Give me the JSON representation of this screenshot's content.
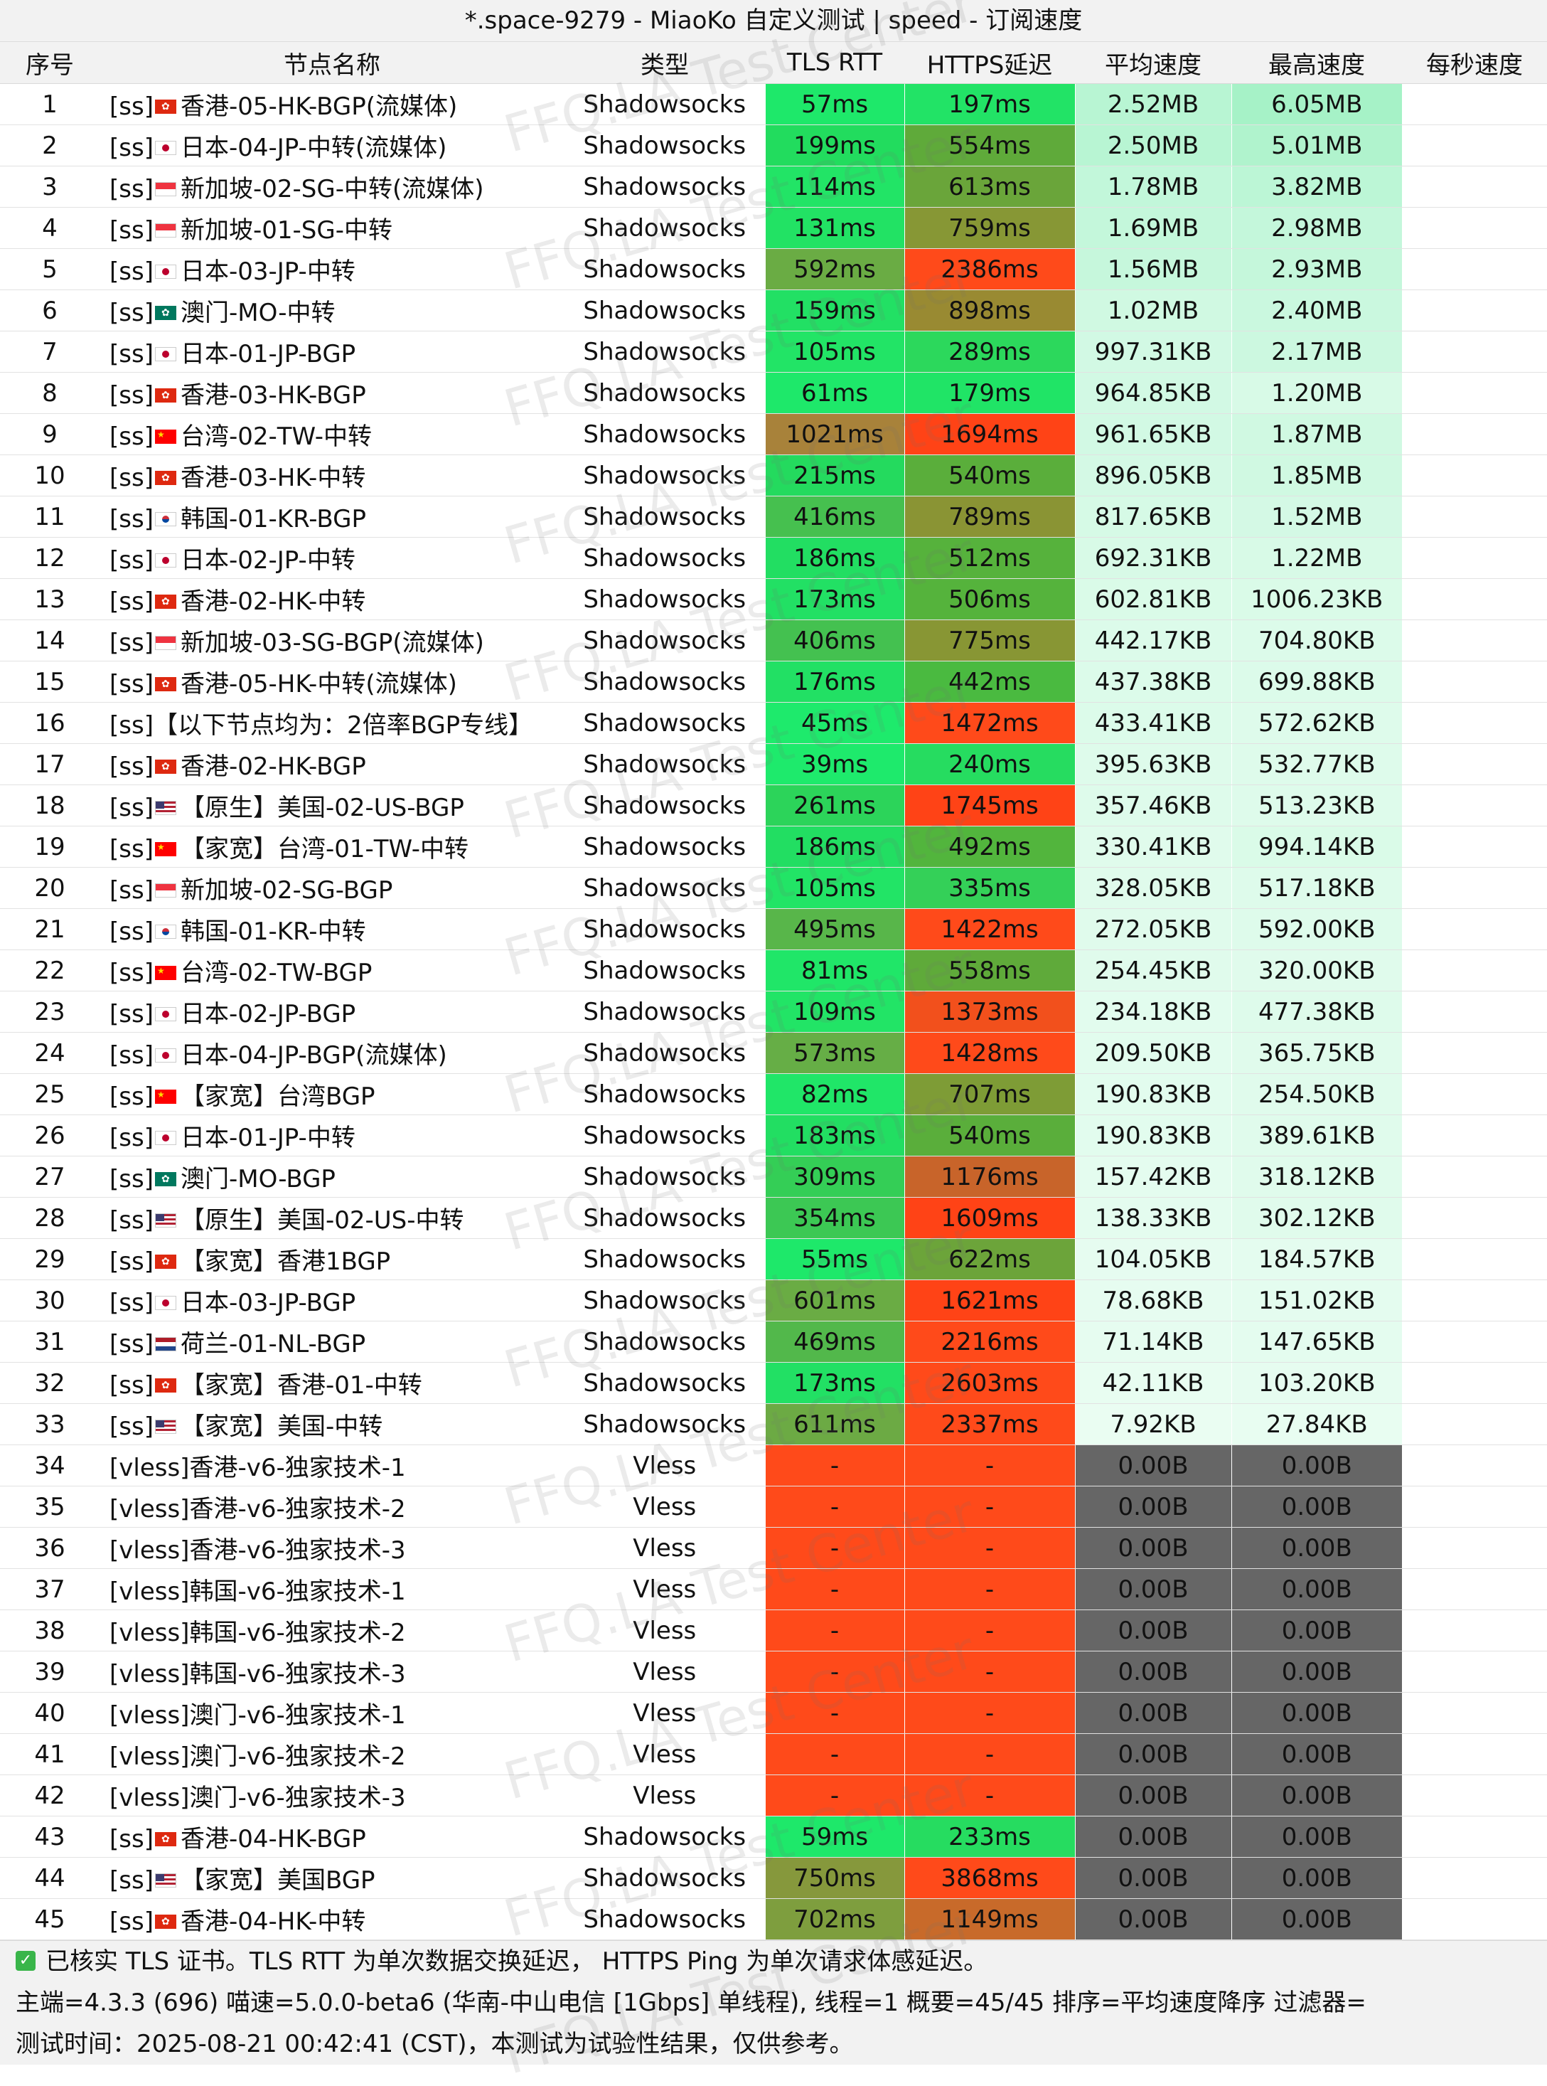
{
  "title": "*.space-9279 - MiaoKo 自定义测试 | speed - 订阅速度",
  "columns": [
    "序号",
    "节点名称",
    "类型",
    "TLS RTT",
    "HTTPS延迟",
    "平均速度",
    "最高速度",
    "每秒速度"
  ],
  "watermark_text": "FFQ.LA Test Center",
  "rows": [
    {
      "idx": "1",
      "prefix": "[ss]",
      "flag": "hk",
      "name": "香港-05-HK-BGP(流媒体)",
      "type": "Shadowsocks",
      "tls": "57ms",
      "https": "197ms",
      "avg": "2.52MB",
      "max": "6.05MB",
      "tls_color": "#1ee86a",
      "https_color": "#22e366",
      "avg_color": "#b8f5d3",
      "max_color": "#a6f2c7"
    },
    {
      "idx": "2",
      "prefix": "[ss]",
      "flag": "jp",
      "name": "日本-04-JP-中转(流媒体)",
      "type": "Shadowsocks",
      "tls": "199ms",
      "https": "554ms",
      "avg": "2.50MB",
      "max": "5.01MB",
      "tls_color": "#22dc5e",
      "https_color": "#5faa3a",
      "avg_color": "#b8f5d3",
      "max_color": "#b0f3cd"
    },
    {
      "idx": "3",
      "prefix": "[ss]",
      "flag": "sg",
      "name": "新加坡-02-SG-中转(流媒体)",
      "type": "Shadowsocks",
      "tls": "114ms",
      "https": "613ms",
      "avg": "1.78MB",
      "max": "3.82MB",
      "tls_color": "#22e466",
      "https_color": "#6aa53a",
      "avg_color": "#c2f7da",
      "max_color": "#bcf6d6"
    },
    {
      "idx": "4",
      "prefix": "[ss]",
      "flag": "sg",
      "name": "新加坡-01-SG-中转",
      "type": "Shadowsocks",
      "tls": "131ms",
      "https": "759ms",
      "avg": "1.69MB",
      "max": "2.98MB",
      "tls_color": "#22e264",
      "https_color": "#879735",
      "avg_color": "#c4f7db",
      "max_color": "#c4f7db"
    },
    {
      "idx": "5",
      "prefix": "[ss]",
      "flag": "jp",
      "name": "日本-03-JP-中转",
      "type": "Shadowsocks",
      "tls": "592ms",
      "https": "2386ms",
      "avg": "1.56MB",
      "max": "2.93MB",
      "tls_color": "#6aac44",
      "https_color": "#ff4a1a",
      "avg_color": "#c6f7dc",
      "max_color": "#c5f7db"
    },
    {
      "idx": "6",
      "prefix": "[ss]",
      "flag": "mo",
      "name": "澳门-MO-中转",
      "type": "Shadowsocks",
      "tls": "159ms",
      "https": "898ms",
      "avg": "1.02MB",
      "max": "2.40MB",
      "tls_color": "#22e064",
      "https_color": "#998a32",
      "avg_color": "#d0f9e2",
      "max_color": "#caf8df"
    },
    {
      "idx": "7",
      "prefix": "[ss]",
      "flag": "jp",
      "name": "日本-01-JP-BGP",
      "type": "Shadowsocks",
      "tls": "105ms",
      "https": "289ms",
      "avg": "997.31KB",
      "max": "2.17MB",
      "tls_color": "#22e466",
      "https_color": "#2cd85c",
      "avg_color": "#d2f9e4",
      "max_color": "#ccf8e0"
    },
    {
      "idx": "8",
      "prefix": "[ss]",
      "flag": "hk",
      "name": "香港-03-HK-BGP",
      "type": "Shadowsocks",
      "tls": "61ms",
      "https": "179ms",
      "avg": "964.85KB",
      "max": "1.20MB",
      "tls_color": "#1ee86a",
      "https_color": "#20e466",
      "avg_color": "#d2f9e4",
      "max_color": "#d8fae7"
    },
    {
      "idx": "9",
      "prefix": "[ss]",
      "flag": "tw",
      "name": "台湾-02-TW-中转",
      "type": "Shadowsocks",
      "tls": "1021ms",
      "https": "1694ms",
      "avg": "961.65KB",
      "max": "1.87MB",
      "tls_color": "#a8823a",
      "https_color": "#ff4316",
      "avg_color": "#d2f9e4",
      "max_color": "#d0f9e2"
    },
    {
      "idx": "10",
      "prefix": "[ss]",
      "flag": "hk",
      "name": "香港-03-HK-中转",
      "type": "Shadowsocks",
      "tls": "215ms",
      "https": "540ms",
      "avg": "896.05KB",
      "max": "1.85MB",
      "tls_color": "#24da5e",
      "https_color": "#5aae3b",
      "avg_color": "#d4f9e5",
      "max_color": "#d0f9e2"
    },
    {
      "idx": "11",
      "prefix": "[ss]",
      "flag": "kr",
      "name": "韩国-01-KR-BGP",
      "type": "Shadowsocks",
      "tls": "416ms",
      "https": "789ms",
      "avg": "817.65KB",
      "max": "1.52MB",
      "tls_color": "#46c04f",
      "https_color": "#8a9434",
      "avg_color": "#d6fae6",
      "max_color": "#d4f9e5"
    },
    {
      "idx": "12",
      "prefix": "[ss]",
      "flag": "jp",
      "name": "日本-02-JP-中转",
      "type": "Shadowsocks",
      "tls": "186ms",
      "https": "512ms",
      "avg": "692.31KB",
      "max": "1.22MB",
      "tls_color": "#22de62",
      "https_color": "#56b23c",
      "avg_color": "#d8fae7",
      "max_color": "#d8fae7"
    },
    {
      "idx": "13",
      "prefix": "[ss]",
      "flag": "hk",
      "name": "香港-02-HK-中转",
      "type": "Shadowsocks",
      "tls": "173ms",
      "https": "506ms",
      "avg": "602.81KB",
      "max": "1006.23KB",
      "tls_color": "#22e064",
      "https_color": "#55b33c",
      "avg_color": "#dafbe8",
      "max_color": "#dafbe8"
    },
    {
      "idx": "14",
      "prefix": "[ss]",
      "flag": "sg",
      "name": "新加坡-03-SG-BGP(流媒体)",
      "type": "Shadowsocks",
      "tls": "406ms",
      "https": "775ms",
      "avg": "442.17KB",
      "max": "704.80KB",
      "tls_color": "#44c150",
      "https_color": "#889634",
      "avg_color": "#dcfbea",
      "max_color": "#dcfbea"
    },
    {
      "idx": "15",
      "prefix": "[ss]",
      "flag": "hk",
      "name": "香港-05-HK-中转(流媒体)",
      "type": "Shadowsocks",
      "tls": "176ms",
      "https": "442ms",
      "avg": "437.38KB",
      "max": "699.88KB",
      "tls_color": "#22e064",
      "https_color": "#4aba40",
      "avg_color": "#dcfbea",
      "max_color": "#dcfbea"
    },
    {
      "idx": "16",
      "prefix": "[ss]",
      "flag": "",
      "name": "【以下节点均为：2倍率BGP专线】",
      "type": "Shadowsocks",
      "tls": "45ms",
      "https": "1472ms",
      "avg": "433.41KB",
      "max": "572.62KB",
      "tls_color": "#1eea6c",
      "https_color": "#ff4a1a",
      "avg_color": "#dcfbea",
      "max_color": "#defbeb"
    },
    {
      "idx": "17",
      "prefix": "[ss]",
      "flag": "hk",
      "name": "香港-02-HK-BGP",
      "type": "Shadowsocks",
      "tls": "39ms",
      "https": "240ms",
      "avg": "395.63KB",
      "max": "532.77KB",
      "tls_color": "#1eea6c",
      "https_color": "#26dc60",
      "avg_color": "#defbeb",
      "max_color": "#defbeb"
    },
    {
      "idx": "18",
      "prefix": "[ss]",
      "flag": "us",
      "name": "【原生】美国-02-US-BGP",
      "type": "Shadowsocks",
      "tls": "261ms",
      "https": "1745ms",
      "avg": "357.46KB",
      "max": "513.23KB",
      "tls_color": "#2cd45a",
      "https_color": "#ff4316",
      "avg_color": "#defbeb",
      "max_color": "#defbeb"
    },
    {
      "idx": "19",
      "prefix": "[ss]",
      "flag": "tw",
      "name": "【家宽】台湾-01-TW-中转",
      "type": "Shadowsocks",
      "tls": "186ms",
      "https": "492ms",
      "avg": "330.41KB",
      "max": "994.14KB",
      "tls_color": "#22de62",
      "https_color": "#52b53d",
      "avg_color": "#e0fbec",
      "max_color": "#dafbe8"
    },
    {
      "idx": "20",
      "prefix": "[ss]",
      "flag": "sg",
      "name": "新加坡-02-SG-BGP",
      "type": "Shadowsocks",
      "tls": "105ms",
      "https": "335ms",
      "avg": "328.05KB",
      "max": "517.18KB",
      "tls_color": "#22e466",
      "https_color": "#34d058",
      "avg_color": "#e0fbec",
      "max_color": "#defbeb"
    },
    {
      "idx": "21",
      "prefix": "[ss]",
      "flag": "kr",
      "name": "韩国-01-KR-中转",
      "type": "Shadowsocks",
      "tls": "495ms",
      "https": "1422ms",
      "avg": "272.05KB",
      "max": "592.00KB",
      "tls_color": "#58b64a",
      "https_color": "#ff4a1a",
      "avg_color": "#e0fbec",
      "max_color": "#defbeb"
    },
    {
      "idx": "22",
      "prefix": "[ss]",
      "flag": "tw",
      "name": "台湾-02-TW-BGP",
      "type": "Shadowsocks",
      "tls": "81ms",
      "https": "558ms",
      "avg": "254.45KB",
      "max": "320.00KB",
      "tls_color": "#20e668",
      "https_color": "#5faa3a",
      "avg_color": "#e0fbec",
      "max_color": "#e0fbec"
    },
    {
      "idx": "23",
      "prefix": "[ss]",
      "flag": "jp",
      "name": "日本-02-JP-BGP",
      "type": "Shadowsocks",
      "tls": "109ms",
      "https": "1373ms",
      "avg": "234.18KB",
      "max": "477.38KB",
      "tls_color": "#22e466",
      "https_color": "#f2501c",
      "avg_color": "#e2fcee",
      "max_color": "#defbeb"
    },
    {
      "idx": "24",
      "prefix": "[ss]",
      "flag": "jp",
      "name": "日本-04-JP-BGP(流媒体)",
      "type": "Shadowsocks",
      "tls": "573ms",
      "https": "1428ms",
      "avg": "209.50KB",
      "max": "365.75KB",
      "tls_color": "#66ae46",
      "https_color": "#ff4a1a",
      "avg_color": "#e2fcee",
      "max_color": "#e0fbec"
    },
    {
      "idx": "25",
      "prefix": "[ss]",
      "flag": "tw",
      "name": "【家宽】台湾BGP",
      "type": "Shadowsocks",
      "tls": "82ms",
      "https": "707ms",
      "avg": "190.83KB",
      "max": "254.50KB",
      "tls_color": "#20e668",
      "https_color": "#7e9c36",
      "avg_color": "#e2fcee",
      "max_color": "#e0fbec"
    },
    {
      "idx": "26",
      "prefix": "[ss]",
      "flag": "jp",
      "name": "日本-01-JP-中转",
      "type": "Shadowsocks",
      "tls": "183ms",
      "https": "540ms",
      "avg": "190.83KB",
      "max": "389.61KB",
      "tls_color": "#22de62",
      "https_color": "#5aae3b",
      "avg_color": "#e2fcee",
      "max_color": "#e0fbec"
    },
    {
      "idx": "27",
      "prefix": "[ss]",
      "flag": "mo",
      "name": "澳门-MO-BGP",
      "type": "Shadowsocks",
      "tls": "309ms",
      "https": "1176ms",
      "avg": "157.42KB",
      "max": "318.12KB",
      "tls_color": "#34ce56",
      "https_color": "#c8642a",
      "avg_color": "#e4fcef",
      "max_color": "#e0fbec"
    },
    {
      "idx": "28",
      "prefix": "[ss]",
      "flag": "us",
      "name": "【原生】美国-02-US-中转",
      "type": "Shadowsocks",
      "tls": "354ms",
      "https": "1609ms",
      "avg": "138.33KB",
      "max": "302.12KB",
      "tls_color": "#3cc854",
      "https_color": "#ff4316",
      "avg_color": "#e4fcef",
      "max_color": "#e0fbec"
    },
    {
      "idx": "29",
      "prefix": "[ss]",
      "flag": "hk",
      "name": "【家宽】香港1BGP",
      "type": "Shadowsocks",
      "tls": "55ms",
      "https": "622ms",
      "avg": "104.05KB",
      "max": "184.57KB",
      "tls_color": "#1ee86a",
      "https_color": "#6ca43a",
      "avg_color": "#e6fcf0",
      "max_color": "#e4fcef"
    },
    {
      "idx": "30",
      "prefix": "[ss]",
      "flag": "jp",
      "name": "日本-03-JP-BGP",
      "type": "Shadowsocks",
      "tls": "601ms",
      "https": "1621ms",
      "avg": "78.68KB",
      "max": "151.02KB",
      "tls_color": "#6aac44",
      "https_color": "#ff4316",
      "avg_color": "#e6fcf0",
      "max_color": "#e4fcef"
    },
    {
      "idx": "31",
      "prefix": "[ss]",
      "flag": "nl",
      "name": "荷兰-01-NL-BGP",
      "type": "Shadowsocks",
      "tls": "469ms",
      "https": "2216ms",
      "avg": "71.14KB",
      "max": "147.65KB",
      "tls_color": "#52b84b",
      "https_color": "#ff4a1a",
      "avg_color": "#e6fcf0",
      "max_color": "#e4fcef"
    },
    {
      "idx": "32",
      "prefix": "[ss]",
      "flag": "hk",
      "name": "【家宽】香港-01-中转",
      "type": "Shadowsocks",
      "tls": "173ms",
      "https": "2603ms",
      "avg": "42.11KB",
      "max": "103.20KB",
      "tls_color": "#22e064",
      "https_color": "#ff4a1a",
      "avg_color": "#e8fdf1",
      "max_color": "#e6fcf0"
    },
    {
      "idx": "33",
      "prefix": "[ss]",
      "flag": "us",
      "name": "【家宽】美国-中转",
      "type": "Shadowsocks",
      "tls": "611ms",
      "https": "2337ms",
      "avg": "7.92KB",
      "max": "27.84KB",
      "tls_color": "#6caa44",
      "https_color": "#ff4a1a",
      "avg_color": "#eafdf2",
      "max_color": "#e8fdf1"
    },
    {
      "idx": "34",
      "prefix": "[vless]",
      "flag": "",
      "name": "香港-v6-独家技术-1",
      "type": "Vless",
      "tls": "-",
      "https": "-",
      "avg": "0.00B",
      "max": "0.00B",
      "tls_color": "#ff4a1a",
      "https_color": "#ff4a1a",
      "avg_color": "#666666",
      "max_color": "#666666"
    },
    {
      "idx": "35",
      "prefix": "[vless]",
      "flag": "",
      "name": "香港-v6-独家技术-2",
      "type": "Vless",
      "tls": "-",
      "https": "-",
      "avg": "0.00B",
      "max": "0.00B",
      "tls_color": "#ff4a1a",
      "https_color": "#ff4a1a",
      "avg_color": "#666666",
      "max_color": "#666666"
    },
    {
      "idx": "36",
      "prefix": "[vless]",
      "flag": "",
      "name": "香港-v6-独家技术-3",
      "type": "Vless",
      "tls": "-",
      "https": "-",
      "avg": "0.00B",
      "max": "0.00B",
      "tls_color": "#ff4a1a",
      "https_color": "#ff4a1a",
      "avg_color": "#666666",
      "max_color": "#666666"
    },
    {
      "idx": "37",
      "prefix": "[vless]",
      "flag": "",
      "name": "韩国-v6-独家技术-1",
      "type": "Vless",
      "tls": "-",
      "https": "-",
      "avg": "0.00B",
      "max": "0.00B",
      "tls_color": "#ff4a1a",
      "https_color": "#ff4a1a",
      "avg_color": "#666666",
      "max_color": "#666666"
    },
    {
      "idx": "38",
      "prefix": "[vless]",
      "flag": "",
      "name": "韩国-v6-独家技术-2",
      "type": "Vless",
      "tls": "-",
      "https": "-",
      "avg": "0.00B",
      "max": "0.00B",
      "tls_color": "#ff4a1a",
      "https_color": "#ff4a1a",
      "avg_color": "#666666",
      "max_color": "#666666"
    },
    {
      "idx": "39",
      "prefix": "[vless]",
      "flag": "",
      "name": "韩国-v6-独家技术-3",
      "type": "Vless",
      "tls": "-",
      "https": "-",
      "avg": "0.00B",
      "max": "0.00B",
      "tls_color": "#ff4a1a",
      "https_color": "#ff4a1a",
      "avg_color": "#666666",
      "max_color": "#666666"
    },
    {
      "idx": "40",
      "prefix": "[vless]",
      "flag": "",
      "name": "澳门-v6-独家技术-1",
      "type": "Vless",
      "tls": "-",
      "https": "-",
      "avg": "0.00B",
      "max": "0.00B",
      "tls_color": "#ff4a1a",
      "https_color": "#ff4a1a",
      "avg_color": "#666666",
      "max_color": "#666666"
    },
    {
      "idx": "41",
      "prefix": "[vless]",
      "flag": "",
      "name": "澳门-v6-独家技术-2",
      "type": "Vless",
      "tls": "-",
      "https": "-",
      "avg": "0.00B",
      "max": "0.00B",
      "tls_color": "#ff4a1a",
      "https_color": "#ff4a1a",
      "avg_color": "#666666",
      "max_color": "#666666"
    },
    {
      "idx": "42",
      "prefix": "[vless]",
      "flag": "",
      "name": "澳门-v6-独家技术-3",
      "type": "Vless",
      "tls": "-",
      "https": "-",
      "avg": "0.00B",
      "max": "0.00B",
      "tls_color": "#ff4a1a",
      "https_color": "#ff4a1a",
      "avg_color": "#666666",
      "max_color": "#666666"
    },
    {
      "idx": "43",
      "prefix": "[ss]",
      "flag": "hk",
      "name": "香港-04-HK-BGP",
      "type": "Shadowsocks",
      "tls": "59ms",
      "https": "233ms",
      "avg": "0.00B",
      "max": "0.00B",
      "tls_color": "#1ee86a",
      "https_color": "#26dc60",
      "avg_color": "#666666",
      "max_color": "#666666"
    },
    {
      "idx": "44",
      "prefix": "[ss]",
      "flag": "us",
      "name": "【家宽】美国BGP",
      "type": "Shadowsocks",
      "tls": "750ms",
      "https": "3868ms",
      "avg": "0.00B",
      "max": "0.00B",
      "tls_color": "#86983c",
      "https_color": "#ff4a1a",
      "avg_color": "#666666",
      "max_color": "#666666"
    },
    {
      "idx": "45",
      "prefix": "[ss]",
      "flag": "hk",
      "name": "香港-04-HK-中转",
      "type": "Shadowsocks",
      "tls": "702ms",
      "https": "1149ms",
      "avg": "0.00B",
      "max": "0.00B",
      "tls_color": "#7e9e3e",
      "https_color": "#c86a2a",
      "avg_color": "#666666",
      "max_color": "#666666"
    }
  ],
  "footer": {
    "check_icon": "check-icon",
    "note": "已核实 TLS 证书。TLS RTT 为单次数据交换延迟， HTTPS Ping 为单次请求体感延迟。",
    "info": "主端=4.3.3 (696) 喵速=5.0.0-beta6 (华南-中山电信 [1Gbps] 单线程), 线程=1 概要=45/45 排序=平均速度降序 过滤器=",
    "time": "测试时间：2025-08-21 00:42:41 (CST)，本测试为试验性结果，仅供参考。"
  }
}
